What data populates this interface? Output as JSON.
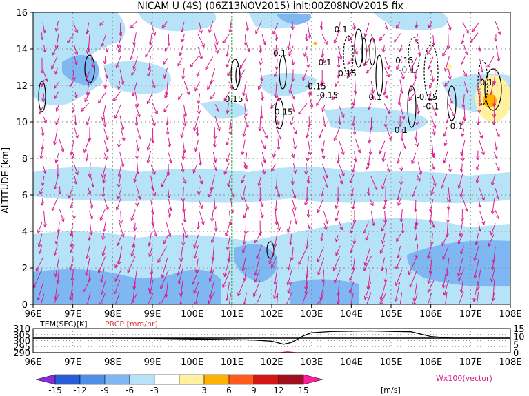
{
  "header": {
    "title": "NICAM U (4S) (06Z13NOV2015) init:00Z08NOV2015 fix"
  },
  "chart_data": [
    {
      "type": "heatmap",
      "name": "u-wind-cross-section",
      "ylabel": "ALTITUDE [km]",
      "x_tick_labels": [
        "96E",
        "97E",
        "98E",
        "99E",
        "100E",
        "101E",
        "102E",
        "103E",
        "104E",
        "105E",
        "106E",
        "107E",
        "108E"
      ],
      "y_tick_labels": [
        "0",
        "2",
        "4",
        "6",
        "8",
        "10",
        "12",
        "14",
        "16"
      ],
      "xlim": [
        96,
        108
      ],
      "ylim": [
        0,
        16
      ],
      "grid": true,
      "marker_line_lon": 101,
      "contour_labels": [
        {
          "text": "0.15",
          "lon": 101.05,
          "alt": 11.1
        },
        {
          "text": "0.15",
          "lon": 102.3,
          "alt": 10.4
        },
        {
          "text": "0.1",
          "lon": 102.2,
          "alt": 13.6
        },
        {
          "text": "-0.1",
          "lon": 103.7,
          "alt": 14.9
        },
        {
          "text": "-0.1",
          "lon": 103.3,
          "alt": 13.1
        },
        {
          "text": "0.15",
          "lon": 103.9,
          "alt": 12.5
        },
        {
          "text": "-0.15",
          "lon": 103.1,
          "alt": 11.8
        },
        {
          "text": "-0.15",
          "lon": 103.4,
          "alt": 11.3
        },
        {
          "text": "0.1",
          "lon": 104.6,
          "alt": 11.2
        },
        {
          "text": "-0.15",
          "lon": 105.3,
          "alt": 13.2
        },
        {
          "text": "-0.1",
          "lon": 105.4,
          "alt": 12.7
        },
        {
          "text": "-0.15",
          "lon": 105.9,
          "alt": 11.2
        },
        {
          "text": "-0.1",
          "lon": 106.0,
          "alt": 10.7
        },
        {
          "text": "0.1",
          "lon": 105.25,
          "alt": 9.4
        },
        {
          "text": "0.1",
          "lon": 106.65,
          "alt": 9.6
        },
        {
          "text": "0.1",
          "lon": 107.4,
          "alt": 12.0
        }
      ]
    },
    {
      "type": "line",
      "name": "surface-temperature-precipitation",
      "legend": [
        "TEM(SFC)[K]",
        "PRCP [mm/hr]"
      ],
      "x_tick_labels": [
        "96E",
        "97E",
        "98E",
        "99E",
        "100E",
        "101E",
        "102E",
        "103E",
        "104E",
        "105E",
        "106E",
        "107E",
        "108E"
      ],
      "y_left_tick_labels": [
        "310",
        "305",
        "300",
        "295",
        "290"
      ],
      "y_right_tick_labels": [
        "15",
        "10",
        "5",
        "0"
      ],
      "ylim_left": [
        290,
        310
      ],
      "ylim_right": [
        0,
        15
      ],
      "series": [
        {
          "name": "TEM(SFC)[K]",
          "x": [
            96,
            97,
            98,
            99,
            100,
            101,
            101.5,
            102,
            102.3,
            102.5,
            102.8,
            103,
            103.5,
            104,
            104.5,
            105,
            105.5,
            106,
            106.5,
            107,
            108
          ],
          "values": [
            302,
            302,
            302,
            301.8,
            301.3,
            300.8,
            300.5,
            299.5,
            297,
            298.5,
            304,
            306.5,
            307.5,
            307.8,
            308,
            307.6,
            307.3,
            303.4,
            302,
            302,
            302
          ]
        },
        {
          "name": "PRCP [mm/hr]",
          "x": [
            96,
            102.2,
            102.4,
            102.6,
            108
          ],
          "values": [
            0,
            0,
            0.6,
            0,
            0
          ]
        }
      ]
    }
  ],
  "colorbar": {
    "tick_labels": [
      "-15",
      "-12",
      "-9",
      "-6",
      "-3",
      "3",
      "6",
      "9",
      "12",
      "15"
    ],
    "unit": "[m/s]",
    "vector_label": "Wx100(vector)",
    "colors": [
      "#2a5bd7",
      "#4f8fe8",
      "#7fb7f2",
      "#b6e3f7",
      "#ffffff",
      "#fff1a0",
      "#ffb300",
      "#ff5a1a",
      "#d41515",
      "#9e0f1f"
    ],
    "end_low_color": "#8a2be2",
    "end_high_color": "#ff1e9c"
  },
  "colors": {
    "vector": "#d81b8c",
    "marker_line": "#1fa51f",
    "grid": "#8c8c8c",
    "precip": "#e23c3c"
  }
}
